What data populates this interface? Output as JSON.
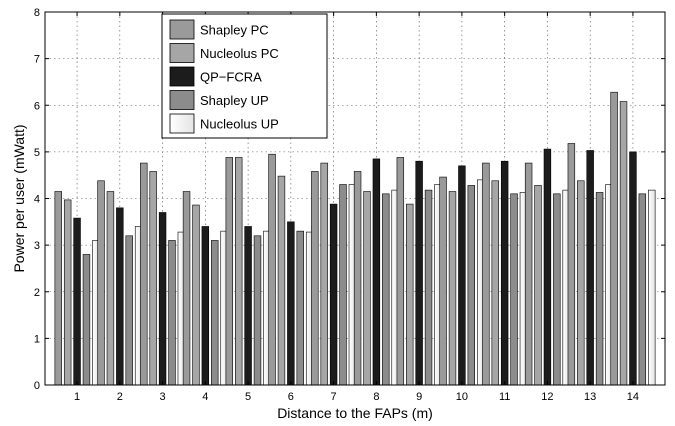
{
  "chart_data": {
    "type": "bar",
    "xlabel": "Distance to the FAPs (m)",
    "ylabel": "Power per user (mWatt)",
    "ylim": [
      0,
      8
    ],
    "yticks": [
      "0",
      "1",
      "2",
      "3",
      "4",
      "5",
      "6",
      "7",
      "8"
    ],
    "categories": [
      "1",
      "2",
      "3",
      "4",
      "5",
      "6",
      "7",
      "8",
      "9",
      "10",
      "11",
      "12",
      "13",
      "14"
    ],
    "grid": true,
    "legend_position": "top-left",
    "series": [
      {
        "name": "Shapley PC",
        "color": "#9a9a9a",
        "values": [
          4.15,
          4.38,
          4.76,
          4.15,
          4.88,
          4.95,
          4.58,
          4.58,
          4.88,
          4.46,
          4.76,
          4.76,
          5.18,
          6.28
        ]
      },
      {
        "name": "Nucleolus PC",
        "color": "#a6a6a6",
        "values": [
          3.97,
          4.15,
          4.58,
          3.86,
          4.88,
          4.48,
          4.76,
          4.15,
          3.88,
          4.15,
          4.38,
          4.28,
          4.38,
          6.08
        ]
      },
      {
        "name": "QP−FCRA",
        "color": "#1c1c1c",
        "values": [
          3.58,
          3.8,
          3.7,
          3.4,
          3.4,
          3.5,
          3.88,
          4.85,
          4.8,
          4.7,
          4.8,
          5.06,
          5.03,
          5.0
        ]
      },
      {
        "name": "Shapley UP",
        "color": "#8c8c8c",
        "values": [
          2.8,
          3.2,
          3.1,
          3.1,
          3.2,
          3.3,
          4.3,
          4.1,
          4.18,
          4.28,
          4.1,
          4.1,
          4.13,
          4.1
        ]
      },
      {
        "name": "Nucleolus UP",
        "color": "#f2f2f2",
        "values": [
          3.1,
          3.4,
          3.28,
          3.3,
          3.3,
          3.28,
          4.3,
          4.18,
          4.3,
          4.4,
          4.13,
          4.18,
          4.3,
          4.18
        ]
      }
    ]
  }
}
